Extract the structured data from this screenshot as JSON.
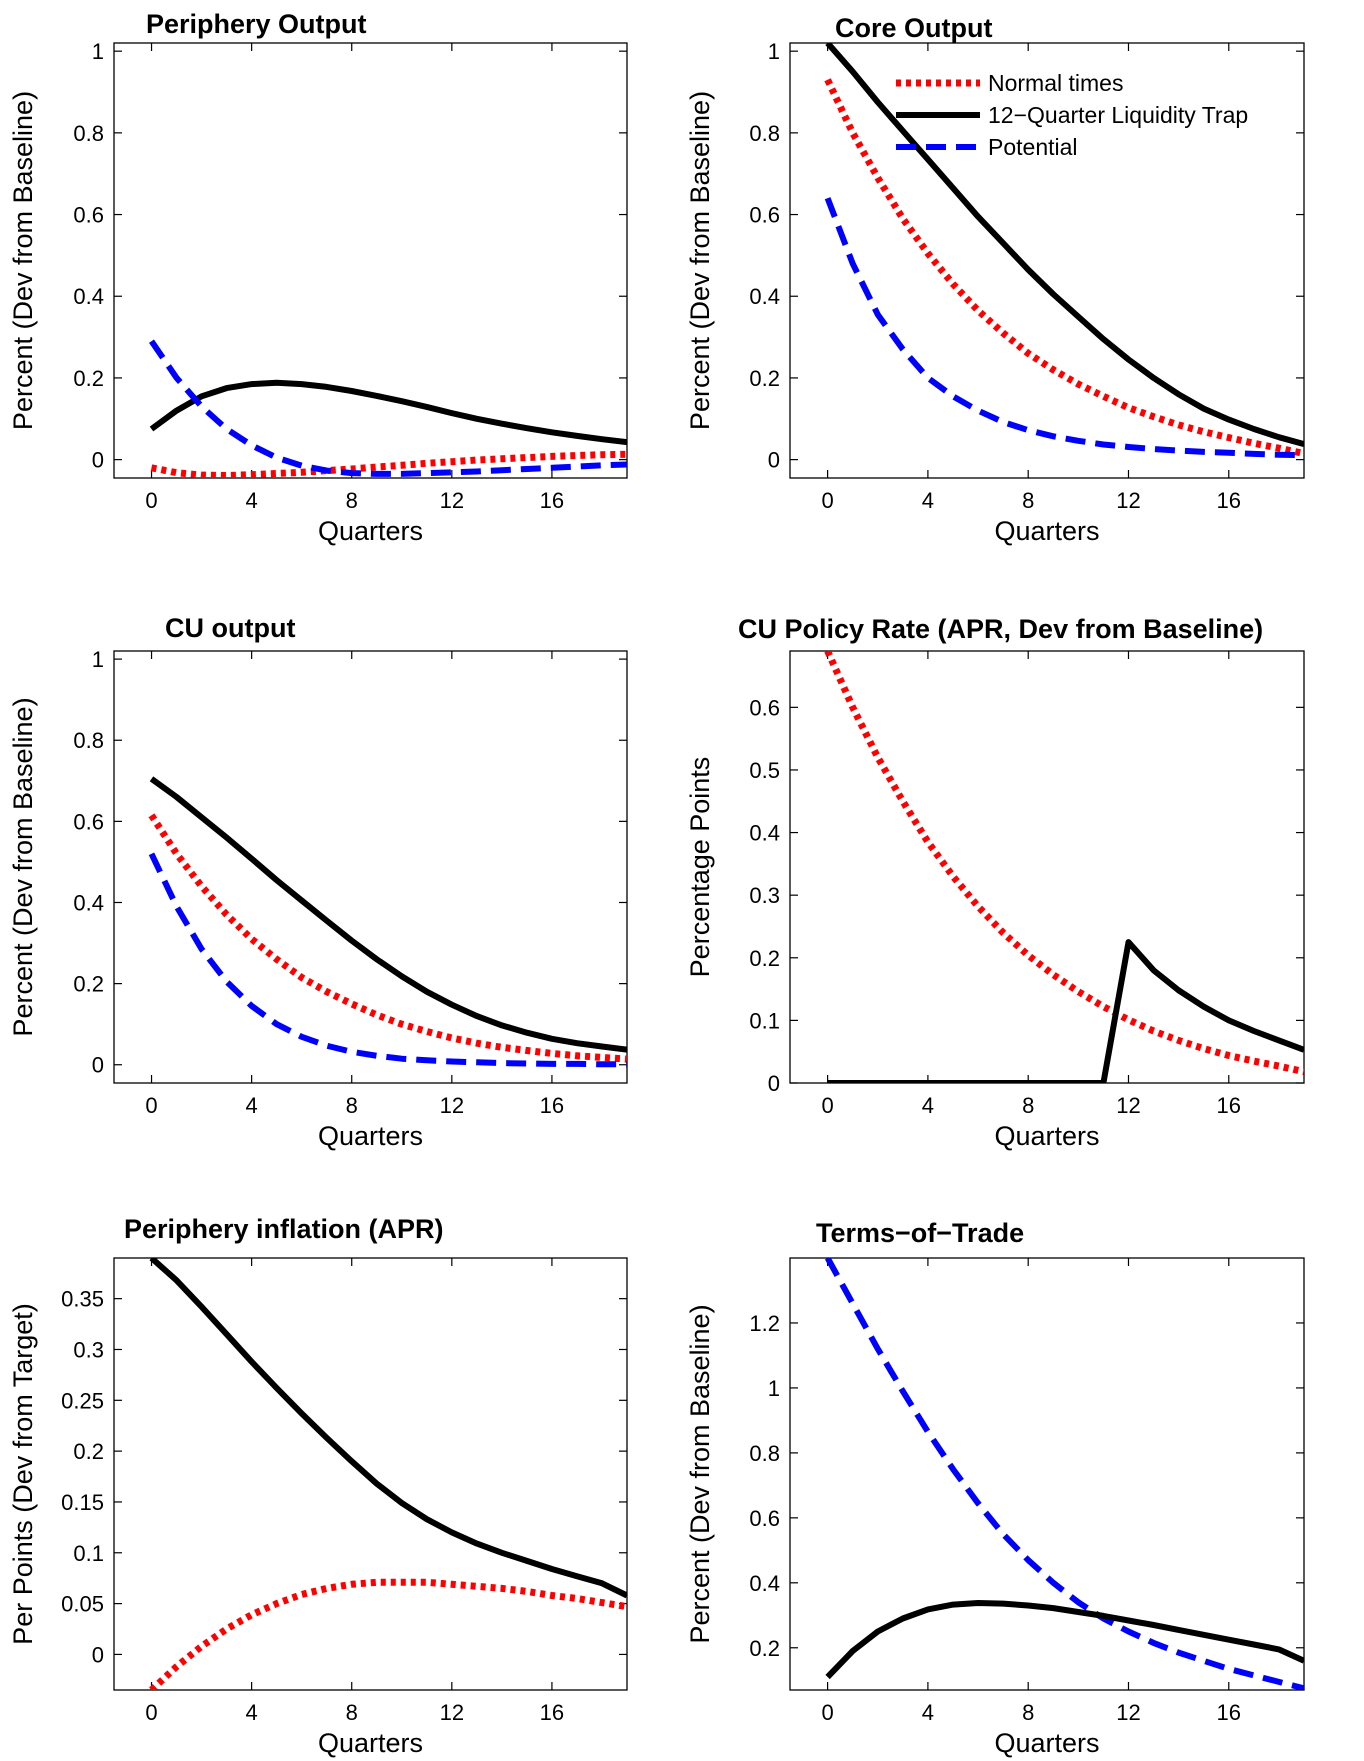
{
  "colors": {
    "normal": "#ff0000",
    "trap": "#000000",
    "potential": "#0000ff"
  },
  "legend": {
    "panel": 1,
    "entries": [
      {
        "label": "Normal times",
        "series": "normal"
      },
      {
        "label": "12−Quarter Liquidity Trap",
        "series": "trap"
      },
      {
        "label": "Potential",
        "series": "potential"
      }
    ]
  },
  "chart_data": [
    {
      "type": "line",
      "title": "Periphery Output",
      "xlabel": "Quarters",
      "ylabel": "Percent (Dev from Baseline)",
      "xlim": [
        -1.5,
        19
      ],
      "ylim": [
        -0.045,
        1.02
      ],
      "xticks": [
        "0",
        "4",
        "8",
        "12",
        "16"
      ],
      "yticks": [
        "0",
        "0.2",
        "0.4",
        "0.6",
        "0.8",
        "1"
      ],
      "x": [
        0,
        1,
        2,
        3,
        4,
        5,
        6,
        7,
        8,
        9,
        10,
        11,
        12,
        13,
        14,
        15,
        16,
        17,
        18,
        19
      ],
      "series": [
        {
          "key": "normal",
          "name": "Normal times",
          "values": [
            -0.02,
            -0.032,
            -0.038,
            -0.039,
            -0.037,
            -0.034,
            -0.031,
            -0.027,
            -0.023,
            -0.018,
            -0.014,
            -0.009,
            -0.005,
            -0.001,
            0.002,
            0.005,
            0.008,
            0.01,
            0.012,
            0.013
          ]
        },
        {
          "key": "trap",
          "name": "12−Quarter Liquidity Trap",
          "values": [
            0.075,
            0.12,
            0.155,
            0.175,
            0.185,
            0.188,
            0.185,
            0.178,
            0.168,
            0.156,
            0.143,
            0.129,
            0.114,
            0.1,
            0.088,
            0.077,
            0.067,
            0.058,
            0.05,
            0.043
          ]
        },
        {
          "key": "potential",
          "name": "Potential",
          "values": [
            0.29,
            0.2,
            0.13,
            0.075,
            0.035,
            0.005,
            -0.015,
            -0.027,
            -0.033,
            -0.035,
            -0.035,
            -0.033,
            -0.031,
            -0.029,
            -0.026,
            -0.023,
            -0.02,
            -0.017,
            -0.014,
            -0.012
          ]
        }
      ]
    },
    {
      "type": "line",
      "title": "Core Output",
      "xlabel": "Quarters",
      "ylabel": "Percent (Dev from Baseline)",
      "xlim": [
        -1.5,
        19
      ],
      "ylim": [
        -0.045,
        1.02
      ],
      "xticks": [
        "0",
        "4",
        "8",
        "12",
        "16"
      ],
      "yticks": [
        "0",
        "0.2",
        "0.4",
        "0.6",
        "0.8",
        "1"
      ],
      "x": [
        0,
        1,
        2,
        3,
        4,
        5,
        6,
        7,
        8,
        9,
        10,
        11,
        12,
        13,
        14,
        15,
        16,
        17,
        18,
        19
      ],
      "series": [
        {
          "key": "normal",
          "name": "Normal times",
          "values": [
            0.93,
            0.8,
            0.69,
            0.59,
            0.505,
            0.43,
            0.365,
            0.31,
            0.26,
            0.22,
            0.185,
            0.155,
            0.127,
            0.105,
            0.085,
            0.068,
            0.054,
            0.04,
            0.028,
            0.015
          ]
        },
        {
          "key": "trap",
          "name": "12−Quarter Liquidity Trap",
          "values": [
            1.02,
            0.95,
            0.875,
            0.805,
            0.735,
            0.665,
            0.595,
            0.53,
            0.465,
            0.405,
            0.35,
            0.295,
            0.245,
            0.2,
            0.16,
            0.125,
            0.098,
            0.075,
            0.055,
            0.038
          ]
        },
        {
          "key": "potential",
          "name": "Potential",
          "values": [
            0.64,
            0.48,
            0.355,
            0.27,
            0.2,
            0.155,
            0.12,
            0.092,
            0.072,
            0.057,
            0.046,
            0.037,
            0.031,
            0.026,
            0.022,
            0.019,
            0.017,
            0.014,
            0.012,
            0.011
          ]
        }
      ]
    },
    {
      "type": "line",
      "title": "CU output",
      "xlabel": "Quarters",
      "ylabel": "Percent (Dev from Baseline)",
      "xlim": [
        -1.5,
        19
      ],
      "ylim": [
        -0.045,
        1.02
      ],
      "xticks": [
        "0",
        "4",
        "8",
        "12",
        "16"
      ],
      "yticks": [
        "0",
        "0.2",
        "0.4",
        "0.6",
        "0.8",
        "1"
      ],
      "x": [
        0,
        1,
        2,
        3,
        4,
        5,
        6,
        7,
        8,
        9,
        10,
        11,
        12,
        13,
        14,
        15,
        16,
        17,
        18,
        19
      ],
      "series": [
        {
          "key": "normal",
          "name": "Normal times",
          "values": [
            0.615,
            0.52,
            0.44,
            0.37,
            0.31,
            0.26,
            0.215,
            0.18,
            0.15,
            0.123,
            0.1,
            0.082,
            0.066,
            0.053,
            0.043,
            0.035,
            0.028,
            0.022,
            0.018,
            0.014
          ]
        },
        {
          "key": "trap",
          "name": "12−Quarter Liquidity Trap",
          "values": [
            0.705,
            0.66,
            0.61,
            0.56,
            0.508,
            0.455,
            0.405,
            0.355,
            0.306,
            0.26,
            0.218,
            0.18,
            0.148,
            0.12,
            0.097,
            0.079,
            0.064,
            0.053,
            0.045,
            0.037
          ]
        },
        {
          "key": "potential",
          "name": "Potential",
          "values": [
            0.52,
            0.39,
            0.285,
            0.205,
            0.145,
            0.1,
            0.069,
            0.047,
            0.032,
            0.022,
            0.015,
            0.011,
            0.008,
            0.006,
            0.004,
            0.003,
            0.002,
            0.002,
            0.001,
            0.001
          ]
        }
      ]
    },
    {
      "type": "line",
      "title": "CU Policy Rate (APR, Dev from Baseline)",
      "xlabel": "Quarters",
      "ylabel": "Percentage Points",
      "xlim": [
        -1.5,
        19
      ],
      "ylim": [
        0,
        0.69
      ],
      "xticks": [
        "0",
        "4",
        "8",
        "12",
        "16"
      ],
      "yticks": [
        "0",
        "0.1",
        "0.2",
        "0.3",
        "0.4",
        "0.5",
        "0.6"
      ],
      "x": [
        0,
        1,
        2,
        3,
        4,
        5,
        6,
        7,
        8,
        9,
        10,
        11,
        12,
        13,
        14,
        15,
        16,
        17,
        18,
        19
      ],
      "series": [
        {
          "key": "normal",
          "name": "Normal times",
          "values": [
            0.69,
            0.6,
            0.52,
            0.45,
            0.385,
            0.33,
            0.282,
            0.24,
            0.204,
            0.173,
            0.146,
            0.122,
            0.101,
            0.083,
            0.068,
            0.055,
            0.044,
            0.035,
            0.027,
            0.018
          ]
        },
        {
          "key": "trap",
          "name": "12−Quarter Liquidity Trap",
          "values": [
            0,
            0,
            0,
            0,
            0,
            0,
            0,
            0,
            0,
            0,
            0,
            0,
            0.225,
            0.18,
            0.148,
            0.122,
            0.1,
            0.083,
            0.068,
            0.053
          ]
        }
      ]
    },
    {
      "type": "line",
      "title": "Periphery inflation (APR)",
      "xlabel": "Quarters",
      "ylabel": "Per Points (Dev from Target)",
      "xlim": [
        -1.5,
        19
      ],
      "ylim": [
        -0.035,
        0.39
      ],
      "xticks": [
        "0",
        "4",
        "8",
        "12",
        "16"
      ],
      "yticks": [
        "0",
        "0.05",
        "0.1",
        "0.15",
        "0.2",
        "0.25",
        "0.3",
        "0.35"
      ],
      "x": [
        0,
        1,
        2,
        3,
        4,
        5,
        6,
        7,
        8,
        9,
        10,
        11,
        12,
        13,
        14,
        15,
        16,
        17,
        18,
        19
      ],
      "series": [
        {
          "key": "normal",
          "name": "Normal times",
          "values": [
            -0.035,
            -0.012,
            0.008,
            0.025,
            0.039,
            0.05,
            0.059,
            0.065,
            0.069,
            0.071,
            0.071,
            0.071,
            0.069,
            0.067,
            0.065,
            0.062,
            0.058,
            0.055,
            0.051,
            0.047
          ]
        },
        {
          "key": "trap",
          "name": "12−Quarter Liquidity Trap",
          "values": [
            0.39,
            0.368,
            0.342,
            0.315,
            0.288,
            0.262,
            0.237,
            0.213,
            0.19,
            0.168,
            0.149,
            0.133,
            0.12,
            0.109,
            0.1,
            0.092,
            0.084,
            0.077,
            0.07,
            0.058
          ]
        }
      ]
    },
    {
      "type": "line",
      "title": "Terms−of−Trade",
      "xlabel": "Quarters",
      "ylabel": "Percent (Dev from Baseline)",
      "xlim": [
        -1.5,
        19
      ],
      "ylim": [
        0.07,
        1.4
      ],
      "xticks": [
        "0",
        "4",
        "8",
        "12",
        "16"
      ],
      "yticks": [
        "0.2",
        "0.4",
        "0.6",
        "0.8",
        "1",
        "1.2"
      ],
      "x": [
        0,
        1,
        2,
        3,
        4,
        5,
        6,
        7,
        8,
        9,
        10,
        11,
        12,
        13,
        14,
        15,
        16,
        17,
        18,
        19
      ],
      "series": [
        {
          "key": "potential",
          "name": "Potential",
          "values": [
            1.4,
            1.26,
            1.12,
            0.99,
            0.865,
            0.75,
            0.645,
            0.55,
            0.47,
            0.4,
            0.34,
            0.29,
            0.25,
            0.215,
            0.185,
            0.16,
            0.135,
            0.115,
            0.095,
            0.075
          ]
        },
        {
          "key": "trap",
          "name": "12−Quarter Liquidity Trap",
          "values": [
            0.11,
            0.19,
            0.25,
            0.29,
            0.318,
            0.333,
            0.338,
            0.336,
            0.33,
            0.322,
            0.31,
            0.298,
            0.284,
            0.27,
            0.255,
            0.24,
            0.225,
            0.21,
            0.195,
            0.16
          ]
        }
      ]
    }
  ]
}
